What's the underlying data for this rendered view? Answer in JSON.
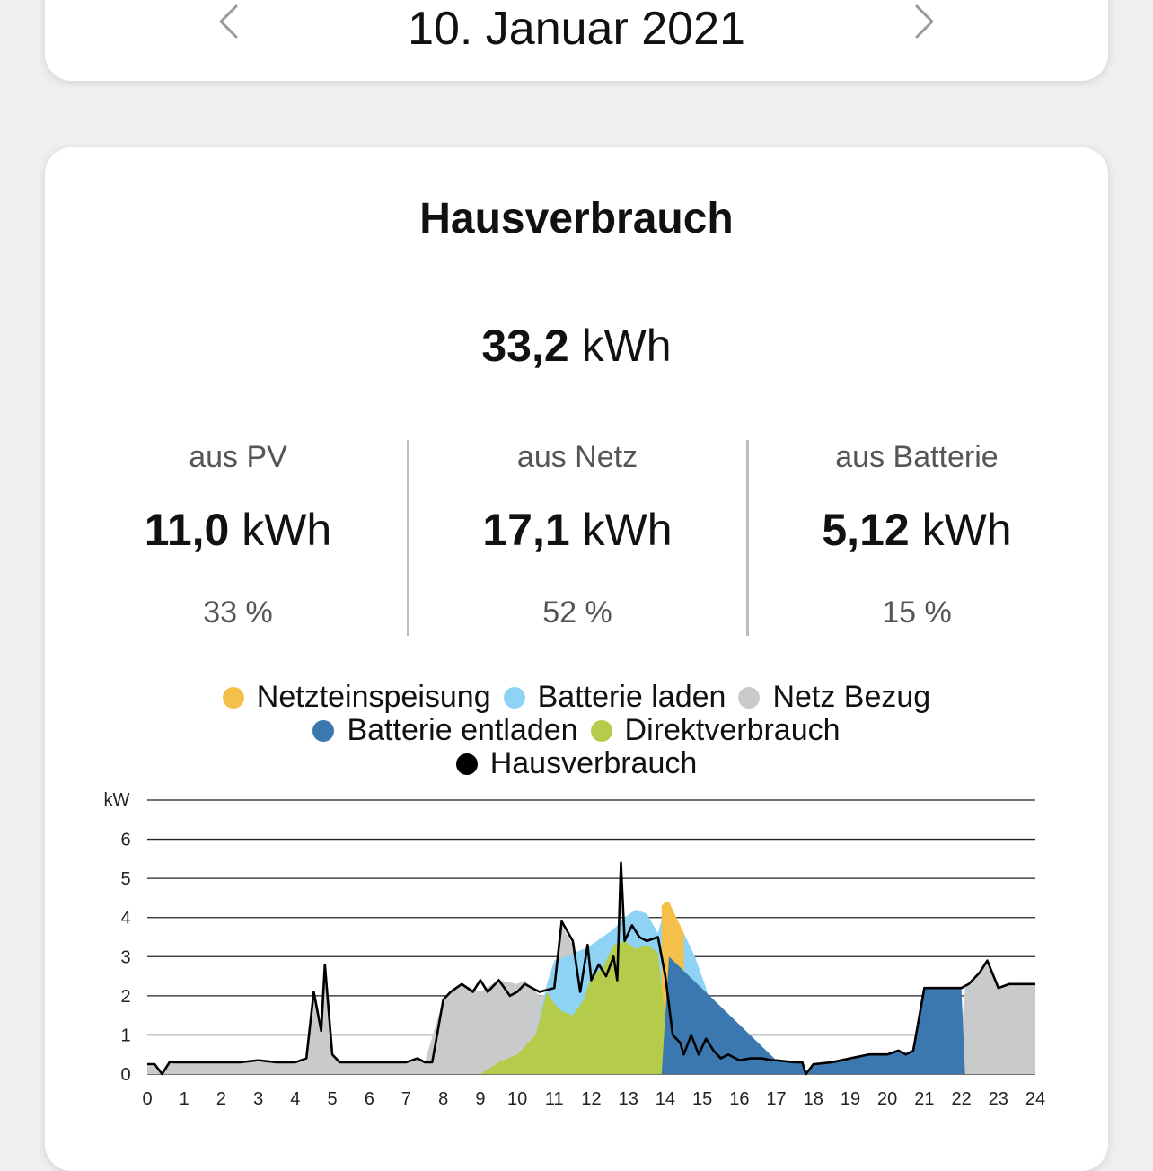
{
  "header": {
    "date": "10. Januar 2021",
    "prev_icon": "chevron-left-icon",
    "next_icon": "chevron-right-icon"
  },
  "summary": {
    "title": "Hausverbrauch",
    "total_value": "33,2",
    "total_unit": "kWh",
    "columns": [
      {
        "label": "aus PV",
        "value": "11,0",
        "unit": "kWh",
        "percent": "33 %"
      },
      {
        "label": "aus Netz",
        "value": "17,1",
        "unit": "kWh",
        "percent": "52 %"
      },
      {
        "label": "aus Batterie",
        "value": "5,12",
        "unit": "kWh",
        "percent": "15 %"
      }
    ]
  },
  "legend": {
    "netzeinspeisung": {
      "label": "Netzteinspeisung",
      "color": "#f5c04a"
    },
    "batterie_laden": {
      "label": "Batterie laden",
      "color": "#8fd3f4"
    },
    "netz_bezug": {
      "label": "Netz Bezug",
      "color": "#c9cacc"
    },
    "batterie_entladen": {
      "label": "Batterie entladen",
      "color": "#3b78b0"
    },
    "direktverbrauch": {
      "label": "Direktverbrauch",
      "color": "#b5cc4a"
    },
    "hausverbrauch": {
      "label": "Hausverbrauch",
      "color": "#000000"
    }
  },
  "chart_data": {
    "type": "area",
    "ylabel": "kW",
    "xlim": [
      0,
      24
    ],
    "ylim": [
      0,
      7
    ],
    "x_ticks": [
      "0",
      "1",
      "2",
      "3",
      "4",
      "5",
      "6",
      "7",
      "8",
      "9",
      "10",
      "11",
      "12",
      "13",
      "14",
      "15",
      "16",
      "17",
      "18",
      "19",
      "20",
      "21",
      "22",
      "23",
      "24"
    ],
    "y_ticks": [
      "0",
      "1",
      "2",
      "3",
      "4",
      "5",
      "6"
    ],
    "grid": true,
    "legend_position": "top",
    "series": [
      {
        "name": "Direktverbrauch",
        "color": "#b5cc4a",
        "x": [
          9,
          9.5,
          10,
          10.5,
          10.8,
          11,
          11.2,
          11.5,
          11.8,
          12,
          12.3,
          12.6,
          12.9,
          13.2,
          13.5,
          13.8,
          14,
          14.2,
          14.5,
          15,
          15.5,
          16,
          16.5,
          17
        ],
        "y": [
          0,
          0.3,
          0.5,
          1.0,
          2.1,
          1.8,
          1.6,
          1.5,
          1.9,
          2.5,
          2.7,
          3.3,
          3.4,
          3.2,
          3.3,
          3.1,
          1.4,
          1.0,
          0.7,
          0.6,
          0.35,
          0.2,
          0.05,
          0
        ]
      },
      {
        "name": "Batterie laden",
        "color": "#8fd3f4",
        "x": [
          10.5,
          10.8,
          11,
          11.3,
          11.8,
          12,
          12.3,
          12.6,
          12.9,
          13.2,
          13.5,
          13.8,
          14,
          14.2,
          14.5,
          14.8,
          15.1,
          15.5,
          16,
          16.5
        ],
        "y": [
          1.0,
          2.3,
          2.9,
          3.0,
          3.2,
          3.3,
          3.5,
          3.7,
          4.0,
          4.2,
          4.1,
          3.6,
          4.3,
          3.8,
          3.6,
          3.0,
          2.2,
          0.8,
          0.4,
          0.1
        ]
      },
      {
        "name": "Netzteinspeisung",
        "color": "#f5c04a",
        "x": [
          13.9,
          14.0,
          14.1,
          14.3,
          14.5
        ],
        "y": [
          4.3,
          4.4,
          4.4,
          4.0,
          3.6
        ]
      },
      {
        "name": "Netz Bezug",
        "color": "#c9cacc",
        "x": [
          0,
          0.2,
          0.4,
          0.6,
          1,
          2,
          3,
          4,
          4.3,
          4.5,
          4.7,
          4.8,
          5.0,
          5.2,
          5.5,
          6,
          7,
          7.3,
          7.5,
          8,
          8.2,
          8.5,
          9,
          9.5,
          10,
          10.2,
          10.6,
          11,
          11.2,
          11.5,
          11.8,
          12,
          12.4,
          13,
          13.5,
          14,
          16,
          21.9,
          22.1,
          22.5,
          22.7,
          23,
          23.3,
          23.6,
          24
        ],
        "y": [
          0.2,
          0.2,
          0,
          0.25,
          0.3,
          0.3,
          0.3,
          0.3,
          0.4,
          2.0,
          1.1,
          2.8,
          0.5,
          0.3,
          0.3,
          0.3,
          0.3,
          0.4,
          0.3,
          1.9,
          2.1,
          2.3,
          2.1,
          2.4,
          2.3,
          2.4,
          2.0,
          2.1,
          3.8,
          3.3,
          1.9,
          1.8,
          1.5,
          0.8,
          0.3,
          0.1,
          0,
          0,
          2.2,
          2.6,
          2.9,
          2.2,
          2.3,
          2.3,
          2.3
        ]
      },
      {
        "name": "Batterie entladen",
        "color": "#3b78b0",
        "x": [
          13.9,
          14.1,
          17,
          17.5,
          17.7,
          17.8,
          18,
          18.5,
          19,
          19.5,
          20,
          20.3,
          20.5,
          20.7,
          21,
          21.5,
          21.8,
          22,
          22.1
        ],
        "y": [
          0,
          3.0,
          0.35,
          0.3,
          0.3,
          0,
          0.25,
          0.3,
          0.4,
          0.5,
          0.5,
          0.6,
          0.5,
          0.6,
          2.2,
          2.2,
          2.2,
          2.2,
          0
        ]
      },
      {
        "name": "Hausverbrauch",
        "color": "#000000",
        "x": [
          0,
          0.2,
          0.4,
          0.6,
          1,
          1.5,
          2,
          2.5,
          3,
          3.5,
          4,
          4.3,
          4.5,
          4.7,
          4.8,
          5.0,
          5.2,
          5.5,
          6,
          6.5,
          7,
          7.3,
          7.5,
          7.7,
          8,
          8.2,
          8.5,
          8.8,
          9,
          9.2,
          9.5,
          9.8,
          10,
          10.2,
          10.6,
          11,
          11.2,
          11.5,
          11.7,
          11.9,
          12,
          12.2,
          12.4,
          12.6,
          12.7,
          12.8,
          12.9,
          13.0,
          13.1,
          13.3,
          13.5,
          13.8,
          14,
          14.2,
          14.4,
          14.5,
          14.7,
          14.9,
          15.1,
          15.3,
          15.5,
          15.7,
          16,
          16.3,
          16.6,
          16.9,
          17,
          17.5,
          17.7,
          17.8,
          18,
          18.5,
          19,
          19.5,
          20,
          20.3,
          20.5,
          20.7,
          21,
          21.5,
          21.8,
          22,
          22.2,
          22.5,
          22.7,
          23,
          23.3,
          23.6,
          24
        ],
        "y": [
          0.25,
          0.25,
          0,
          0.3,
          0.3,
          0.3,
          0.3,
          0.3,
          0.35,
          0.3,
          0.3,
          0.4,
          2.1,
          1.1,
          2.8,
          0.5,
          0.3,
          0.3,
          0.3,
          0.3,
          0.3,
          0.4,
          0.3,
          0.3,
          1.9,
          2.1,
          2.3,
          2.1,
          2.4,
          2.1,
          2.4,
          2.0,
          2.1,
          2.3,
          2.1,
          2.2,
          3.9,
          3.4,
          2.1,
          3.3,
          2.4,
          2.8,
          2.5,
          3.0,
          2.4,
          5.4,
          3.4,
          3.6,
          3.8,
          3.5,
          3.4,
          3.5,
          2.5,
          1.0,
          0.8,
          0.5,
          1.0,
          0.5,
          0.9,
          0.6,
          0.4,
          0.5,
          0.35,
          0.4,
          0.4,
          0.35,
          0.35,
          0.3,
          0.3,
          0,
          0.25,
          0.3,
          0.4,
          0.5,
          0.5,
          0.6,
          0.5,
          0.6,
          2.2,
          2.2,
          2.2,
          2.2,
          2.3,
          2.6,
          2.9,
          2.2,
          2.3,
          2.3,
          2.3
        ]
      }
    ]
  }
}
